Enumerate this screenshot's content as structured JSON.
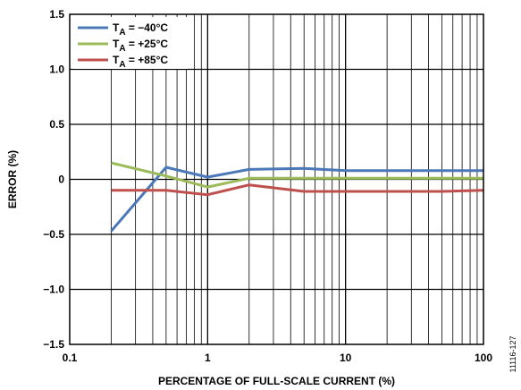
{
  "chart_data": {
    "type": "line",
    "xlabel": "PERCENTAGE OF FULL-SCALE CURRENT (%)",
    "ylabel": "ERROR (%)",
    "xscale": "log",
    "xlim": [
      0.1,
      100
    ],
    "ylim": [
      -1.5,
      1.5
    ],
    "xticks": [
      "0.1",
      "1",
      "10",
      "100"
    ],
    "yticks": [
      "1.5",
      "1.0",
      "0.5",
      "0",
      "−0.5",
      "−1.0",
      "−1.5"
    ],
    "grid": true,
    "legend_position": "top-left",
    "series": [
      {
        "name": "T",
        "sub": "A",
        "suffix": " = −40°C",
        "color": "#4a78b8",
        "x": [
          0.2,
          0.5,
          1,
          2,
          5,
          10,
          20,
          50,
          100
        ],
        "y": [
          -0.47,
          0.11,
          0.02,
          0.09,
          0.1,
          0.08,
          0.08,
          0.08,
          0.08
        ]
      },
      {
        "name": "T",
        "sub": "A",
        "suffix": " = +25°C",
        "color": "#9bbb59",
        "x": [
          0.2,
          0.5,
          1,
          2,
          5,
          10,
          20,
          50,
          100
        ],
        "y": [
          0.15,
          0.03,
          -0.07,
          0.01,
          0.01,
          0.01,
          0.01,
          0.01,
          0.01
        ]
      },
      {
        "name": "T",
        "sub": "A",
        "suffix": " = +85°C",
        "color": "#c0504d",
        "x": [
          0.2,
          0.5,
          1,
          2,
          5,
          10,
          20,
          50,
          100
        ],
        "y": [
          -0.1,
          -0.1,
          -0.14,
          -0.05,
          -0.11,
          -0.11,
          -0.11,
          -0.11,
          -0.1
        ]
      }
    ]
  },
  "figure_id": "11116-127"
}
